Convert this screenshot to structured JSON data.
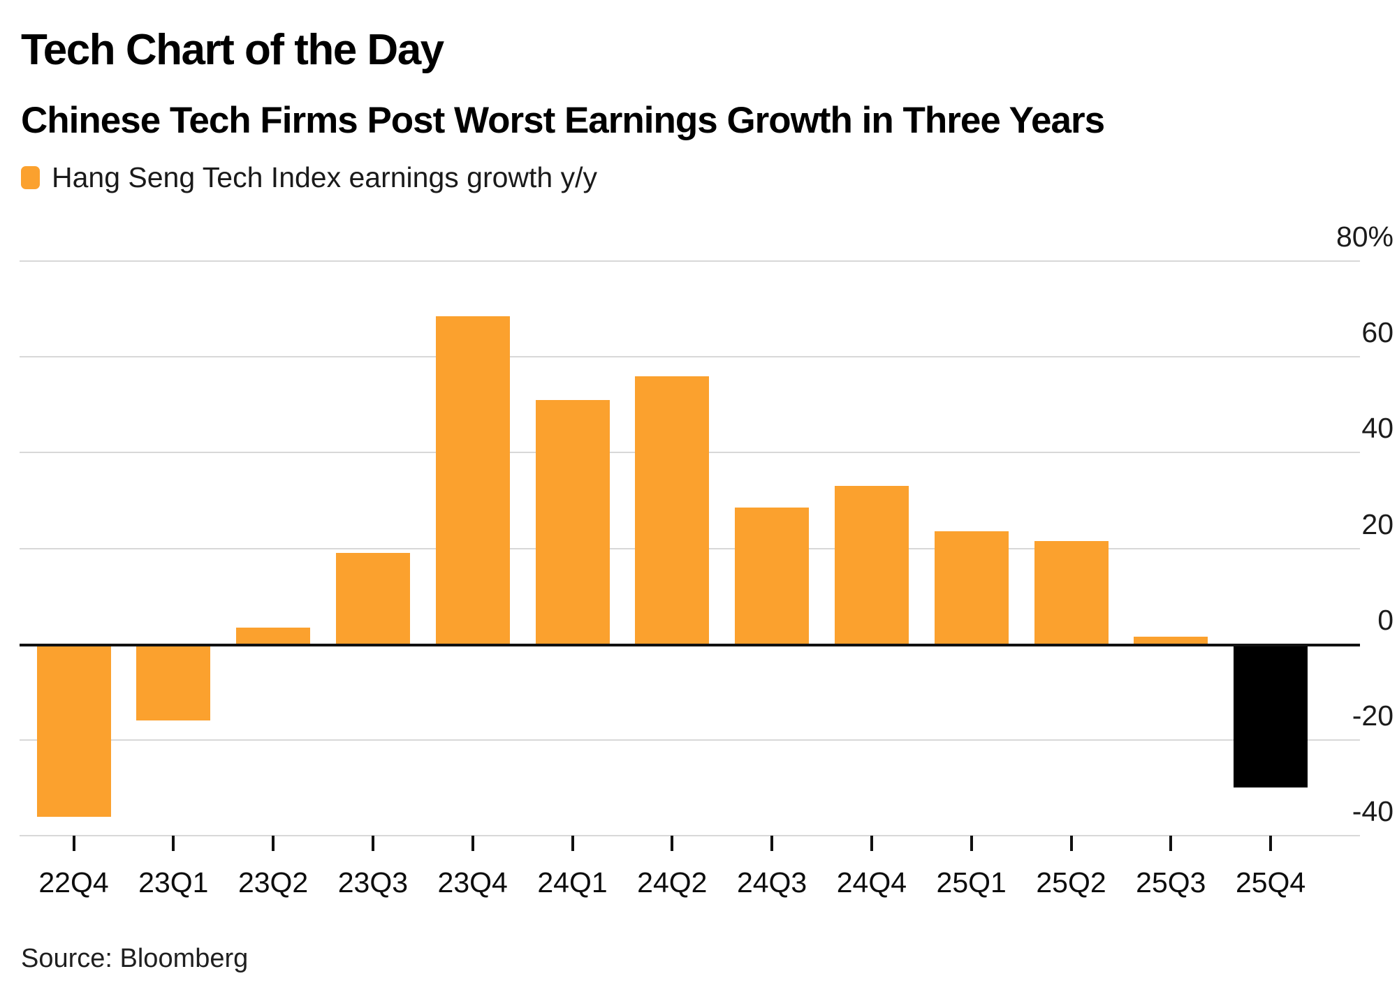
{
  "header": {
    "kicker": "Tech Chart of the Day",
    "headline": "Chinese Tech Firms Post Worst Earnings Growth in Three Years"
  },
  "legend": {
    "label": "Hang Seng Tech Index earnings growth y/y",
    "swatch_color": "#FBA12E"
  },
  "chart_data": {
    "type": "bar",
    "title": "Chinese Tech Firms Post Worst Earnings Growth in Three Years",
    "series_name": "Hang Seng Tech Index earnings growth y/y",
    "categories": [
      "22Q4",
      "23Q1",
      "23Q2",
      "23Q3",
      "23Q4",
      "24Q1",
      "24Q2",
      "24Q3",
      "24Q4",
      "25Q1",
      "25Q2",
      "25Q3",
      "25Q4"
    ],
    "values": [
      -36,
      -16,
      3.5,
      19,
      68.5,
      51,
      56,
      28.5,
      33,
      23.5,
      21.5,
      1.5,
      -30
    ],
    "unit": "%",
    "xlabel": "",
    "ylabel": "",
    "ylim": [
      -40,
      80
    ],
    "yticks": [
      {
        "value": 80,
        "label": "80%"
      },
      {
        "value": 60,
        "label": "60"
      },
      {
        "value": 40,
        "label": "40"
      },
      {
        "value": 20,
        "label": "20"
      },
      {
        "value": 0,
        "label": "0"
      },
      {
        "value": -20,
        "label": "-20"
      },
      {
        "value": -40,
        "label": "-40"
      }
    ],
    "grid": "horizontal",
    "legend_position": "top-left",
    "bar_color": "#FBA12E",
    "highlight": {
      "category": "25Q4",
      "color": "#000000"
    }
  },
  "colors": {
    "background": "#ffffff",
    "orange": "#FBA12E",
    "highlight_black": "#000000",
    "gridline": "#d8d8d8",
    "zero_line": "#111111",
    "text": "#000000"
  },
  "source": {
    "text": "Source: Bloomberg"
  }
}
